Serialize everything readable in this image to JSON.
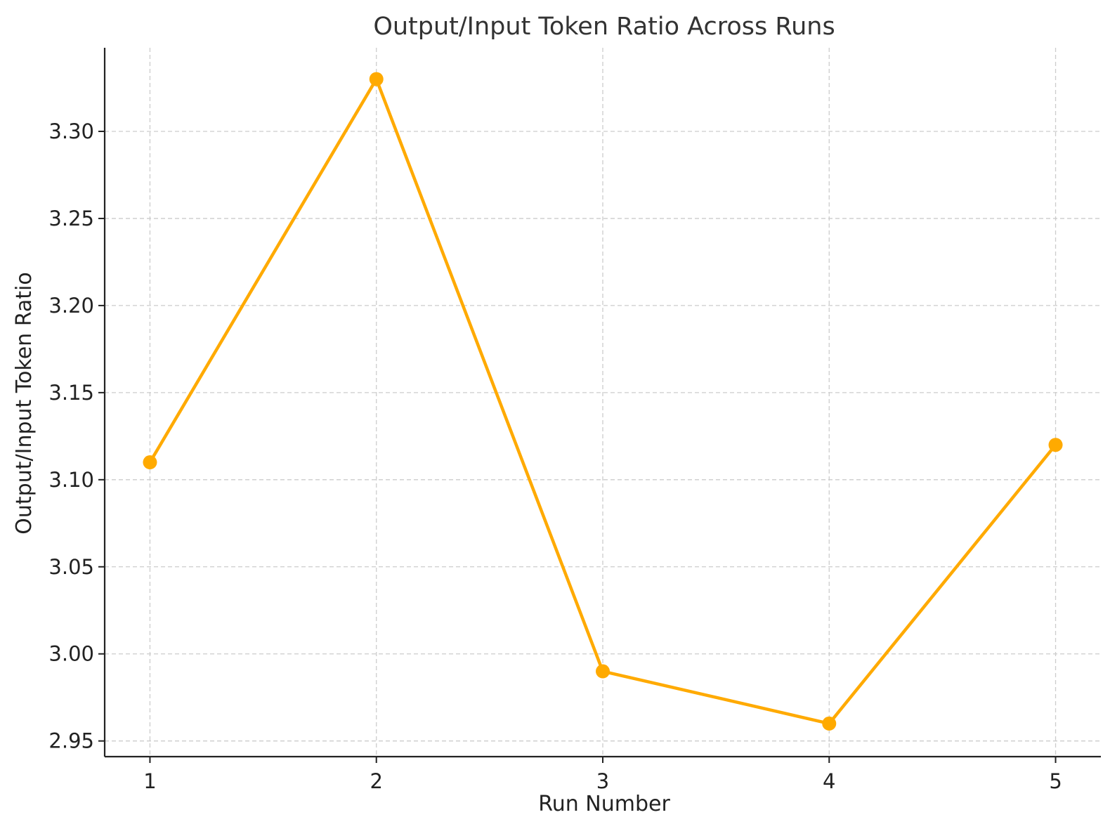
{
  "chart_data": {
    "type": "line",
    "title": "Output/Input Token Ratio Across Runs",
    "xlabel": "Run Number",
    "ylabel": "Output/Input Token Ratio",
    "x": [
      1,
      2,
      3,
      4,
      5
    ],
    "x_tick_labels": [
      "1",
      "2",
      "3",
      "4",
      "5"
    ],
    "series": [
      {
        "values": [
          3.11,
          3.33,
          2.99,
          2.96,
          3.12
        ],
        "color": "#FFAA00",
        "marker": "circle"
      }
    ],
    "y_ticks": [
      2.95,
      3.0,
      3.05,
      3.1,
      3.15,
      3.2,
      3.25,
      3.3
    ],
    "y_tick_labels": [
      "2.95",
      "3.00",
      "3.05",
      "3.10",
      "3.15",
      "3.20",
      "3.25",
      "3.30"
    ],
    "xlim": [
      0.8,
      5.2
    ],
    "ylim": [
      2.941,
      3.348
    ],
    "grid": true,
    "grid_style": "dashed"
  }
}
